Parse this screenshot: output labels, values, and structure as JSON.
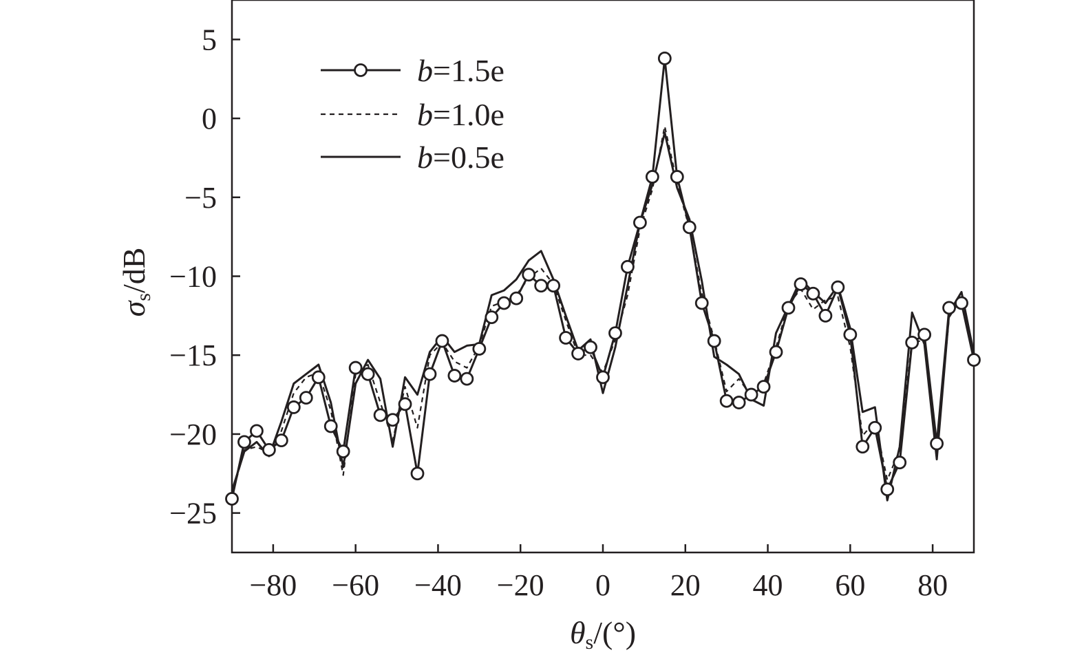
{
  "chart_data": {
    "type": "line",
    "title": "",
    "xlabel": {
      "symbol": "θ",
      "subscript": "s",
      "rest": "/(°)"
    },
    "ylabel": {
      "symbol": "σ",
      "subscript": "s",
      "rest": "/dB"
    },
    "xlim": [
      -90,
      90
    ],
    "ylim": [
      -27.5,
      7.5
    ],
    "xticks": [
      -80,
      -60,
      -40,
      -20,
      0,
      20,
      40,
      60,
      80
    ],
    "xtick_labels": [
      "−80",
      "−60",
      "−40",
      "−20",
      "0",
      "20",
      "40",
      "60",
      "80"
    ],
    "yticks": [
      5,
      0,
      -5,
      -10,
      -15,
      -20,
      -25
    ],
    "ytick_labels": [
      "5",
      "0",
      "−5",
      "−10",
      "−15",
      "−20",
      "−25"
    ],
    "grid": false,
    "legend_position": "top-left",
    "line_color": "#231f20",
    "series": [
      {
        "name": "b=1.5e",
        "legend_italic": "b",
        "legend_rest": "=1.5e",
        "style": "solid-marker",
        "x": [
          -90,
          -87,
          -84,
          -81,
          -78,
          -75,
          -72,
          -69,
          -66,
          -63,
          -60,
          -57,
          -54,
          -51,
          -48,
          -45,
          -42,
          -39,
          -36,
          -33,
          -30,
          -27,
          -24,
          -21,
          -18,
          -15,
          -12,
          -9,
          -6,
          -3,
          0,
          3,
          6,
          9,
          12,
          15,
          18,
          21,
          24,
          27,
          30,
          33,
          36,
          39,
          42,
          45,
          48,
          51,
          54,
          57,
          60,
          63,
          66,
          69,
          72,
          75,
          78,
          81,
          84,
          87,
          90
        ],
        "y": [
          -24.1,
          -20.5,
          -19.8,
          -21.0,
          -20.4,
          -18.3,
          -17.7,
          -16.4,
          -19.5,
          -21.1,
          -15.8,
          -16.2,
          -18.8,
          -19.1,
          -18.1,
          -22.5,
          -16.2,
          -14.1,
          -16.3,
          -16.5,
          -14.6,
          -12.6,
          -11.7,
          -11.4,
          -9.9,
          -10.6,
          -10.6,
          -13.9,
          -14.9,
          -14.5,
          -16.4,
          -13.6,
          -9.4,
          -6.6,
          -3.7,
          3.8,
          -3.7,
          -6.9,
          -11.7,
          -14.1,
          -17.9,
          -18.0,
          -17.5,
          -17.0,
          -14.8,
          -12.0,
          -10.5,
          -11.1,
          -12.5,
          -10.7,
          -13.7,
          -20.8,
          -19.6,
          -23.5,
          -21.8,
          -14.2,
          -13.7,
          -20.6,
          -12.0,
          -11.7,
          -15.3
        ]
      },
      {
        "name": "b=1.0e",
        "legend_italic": "b",
        "legend_rest": "=1.0e",
        "style": "dashed",
        "x": [
          -90,
          -87,
          -84,
          -81,
          -78,
          -75,
          -72,
          -69,
          -66,
          -63,
          -60,
          -57,
          -54,
          -51,
          -48,
          -45,
          -42,
          -39,
          -36,
          -33,
          -30,
          -27,
          -24,
          -21,
          -18,
          -15,
          -12,
          -9,
          -6,
          -3,
          0,
          3,
          6,
          9,
          12,
          15,
          18,
          21,
          24,
          27,
          30,
          33,
          36,
          39,
          42,
          45,
          48,
          51,
          54,
          57,
          60,
          63,
          66,
          69,
          72,
          75,
          78,
          81,
          84,
          87,
          90
        ],
        "y": [
          -23.9,
          -21.0,
          -20.8,
          -21.2,
          -19.8,
          -17.4,
          -16.4,
          -16.1,
          -18.5,
          -22.6,
          -16.2,
          -15.6,
          -18.0,
          -20.4,
          -17.0,
          -19.6,
          -15.0,
          -14.2,
          -15.4,
          -15.8,
          -14.4,
          -11.9,
          -11.6,
          -11.2,
          -10.1,
          -9.5,
          -10.5,
          -12.8,
          -15.0,
          -15.0,
          -16.1,
          -14.0,
          -11.2,
          -7.0,
          -4.5,
          -0.5,
          -4.1,
          -7.0,
          -11.1,
          -14.0,
          -17.3,
          -16.5,
          -17.6,
          -16.8,
          -14.5,
          -11.8,
          -10.8,
          -12.1,
          -11.5,
          -11.3,
          -14.5,
          -20.1,
          -19.2,
          -22.9,
          -21.0,
          -14.0,
          -14.2,
          -21.0,
          -12.6,
          -11.4,
          -14.9
        ]
      },
      {
        "name": "b=0.5e",
        "legend_italic": "b",
        "legend_rest": "=0.5e",
        "style": "solid",
        "x": [
          -90,
          -87,
          -84,
          -81,
          -78,
          -75,
          -72,
          -69,
          -66,
          -63,
          -60,
          -57,
          -54,
          -51,
          -48,
          -45,
          -42,
          -39,
          -36,
          -33,
          -30,
          -27,
          -24,
          -21,
          -18,
          -15,
          -12,
          -9,
          -6,
          -3,
          0,
          3,
          6,
          9,
          12,
          15,
          18,
          21,
          24,
          27,
          30,
          33,
          36,
          39,
          42,
          45,
          48,
          51,
          54,
          57,
          60,
          63,
          66,
          69,
          72,
          75,
          78,
          81,
          84,
          87,
          90
        ],
        "y": [
          -23.6,
          -21.1,
          -20.5,
          -21.4,
          -19.2,
          -16.8,
          -16.2,
          -15.6,
          -18.0,
          -22.1,
          -16.8,
          -15.3,
          -16.5,
          -20.8,
          -16.4,
          -17.5,
          -14.8,
          -13.8,
          -14.8,
          -14.4,
          -14.3,
          -11.2,
          -10.9,
          -10.2,
          -9.0,
          -8.4,
          -10.2,
          -12.5,
          -14.7,
          -14.0,
          -17.4,
          -14.5,
          -10.6,
          -6.6,
          -4.2,
          -0.9,
          -4.4,
          -6.4,
          -10.3,
          -15.1,
          -15.6,
          -16.2,
          -17.8,
          -18.2,
          -13.6,
          -11.9,
          -10.2,
          -11.0,
          -11.7,
          -10.6,
          -13.3,
          -18.6,
          -18.3,
          -24.2,
          -20.8,
          -12.3,
          -14.3,
          -21.6,
          -12.3,
          -11.0,
          -14.9
        ]
      }
    ]
  }
}
